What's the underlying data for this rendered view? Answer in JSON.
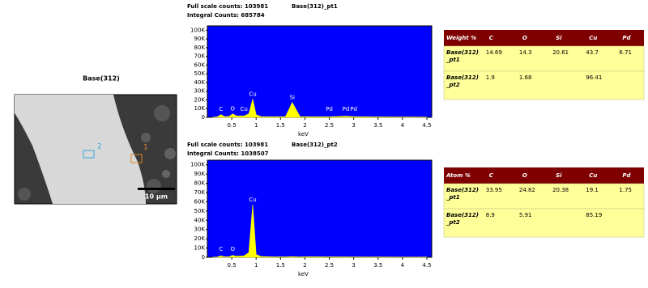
{
  "image": {
    "title": "Base(312)",
    "markers": [
      "1",
      "2"
    ],
    "scale_bar": "10 μm"
  },
  "chart_data": [
    {
      "type": "area",
      "header": [
        "Full scale counts: 103981",
        "Integral Counts: 685784"
      ],
      "title": "Base(312)_pt1",
      "x_label": "keV",
      "color": "#ffff00",
      "background": "#0000ff",
      "x": [
        0.1,
        0.2,
        0.28,
        0.35,
        0.45,
        0.52,
        0.6,
        0.75,
        0.85,
        0.93,
        1.0,
        1.1,
        1.3,
        1.6,
        1.74,
        1.9,
        2.1,
        2.5,
        2.84,
        3.0,
        3.5,
        4.0,
        4.5
      ],
      "values": [
        0,
        500,
        3000,
        800,
        1000,
        4000,
        1500,
        1500,
        4000,
        21000,
        3000,
        800,
        600,
        600,
        17000,
        800,
        600,
        500,
        1200,
        800,
        400,
        300,
        200
      ],
      "annotations": [
        {
          "label": "C",
          "x": 0.28
        },
        {
          "label": "O",
          "x": 0.52
        },
        {
          "label": "Cu",
          "x": 0.75
        },
        {
          "label": "Cu",
          "x": 0.93
        },
        {
          "label": "Si",
          "x": 1.74
        },
        {
          "label": "Pd",
          "x": 2.5
        },
        {
          "label": "Pd",
          "x": 2.84
        },
        {
          "label": "Pd",
          "x": 3.0
        }
      ],
      "xlim": [
        0,
        4.6
      ],
      "ylim": [
        0,
        105000
      ],
      "xticks": [
        0.5,
        1.0,
        1.5,
        2.0,
        2.5,
        3.0,
        3.5,
        4.0,
        4.5
      ],
      "yticks": [
        0,
        {
          "value": 10000,
          "label": "10K"
        },
        {
          "value": 20000,
          "label": "20K"
        },
        {
          "value": 30000,
          "label": "30K"
        },
        {
          "value": 40000,
          "label": "40K"
        },
        {
          "value": 50000,
          "label": "50K"
        },
        {
          "value": 60000,
          "label": "60K"
        },
        {
          "value": 70000,
          "label": "70K"
        },
        {
          "value": 80000,
          "label": "80K"
        },
        {
          "value": 90000,
          "label": "90K"
        },
        {
          "value": 100000,
          "label": "100K"
        }
      ]
    },
    {
      "type": "area",
      "header": [
        "Full scale counts: 103981",
        "Integral Counts: 1038507"
      ],
      "title": "Base(312)_pt2",
      "x_label": "keV",
      "color": "#ffff00",
      "background": "#0000ff",
      "x": [
        0.1,
        0.2,
        0.28,
        0.35,
        0.45,
        0.52,
        0.6,
        0.75,
        0.85,
        0.93,
        1.0,
        1.1,
        1.3,
        1.6,
        1.74,
        1.9,
        2.1,
        2.5,
        2.84,
        3.0,
        3.5,
        4.0,
        4.5
      ],
      "values": [
        0,
        300,
        1500,
        500,
        600,
        2000,
        1000,
        1500,
        5000,
        57000,
        3000,
        800,
        500,
        400,
        600,
        400,
        500,
        400,
        400,
        300,
        300,
        200,
        150
      ],
      "annotations": [
        {
          "label": "C",
          "x": 0.28
        },
        {
          "label": "O",
          "x": 0.52
        },
        {
          "label": "Cu",
          "x": 0.93
        }
      ],
      "xlim": [
        0,
        4.6
      ],
      "ylim": [
        0,
        105000
      ],
      "xticks": [
        0.5,
        1.0,
        1.5,
        2.0,
        2.5,
        3.0,
        3.5,
        4.0,
        4.5
      ],
      "yticks": [
        0,
        {
          "value": 10000,
          "label": "10K"
        },
        {
          "value": 20000,
          "label": "20K"
        },
        {
          "value": 30000,
          "label": "30K"
        },
        {
          "value": 40000,
          "label": "40K"
        },
        {
          "value": 50000,
          "label": "50K"
        },
        {
          "value": 60000,
          "label": "60K"
        },
        {
          "value": 70000,
          "label": "70K"
        },
        {
          "value": 80000,
          "label": "80K"
        },
        {
          "value": 90000,
          "label": "90K"
        },
        {
          "value": 100000,
          "label": "100K"
        }
      ]
    }
  ],
  "tables": [
    {
      "header": [
        "Weight %",
        "C",
        "O",
        "Si",
        "Cu",
        "Pd"
      ],
      "rows": [
        {
          "label": [
            "Base(312)",
            "_pt1"
          ],
          "cells": [
            14.69,
            14.3,
            20.61,
            43.7,
            6.71
          ]
        },
        {
          "label": [
            "Base(312)",
            "_pt2"
          ],
          "cells": [
            1.9,
            1.68,
            null,
            96.41,
            null
          ]
        }
      ]
    },
    {
      "header": [
        "Atom %",
        "C",
        "O",
        "Si",
        "Cu",
        "Pd"
      ],
      "rows": [
        {
          "label": [
            "Base(312)",
            "_pt1"
          ],
          "cells": [
            33.95,
            24.82,
            20.38,
            19.1,
            1.75
          ]
        },
        {
          "label": [
            "Base(312)",
            "_pt2"
          ],
          "cells": [
            8.9,
            5.91,
            null,
            85.19,
            null
          ]
        }
      ]
    }
  ]
}
